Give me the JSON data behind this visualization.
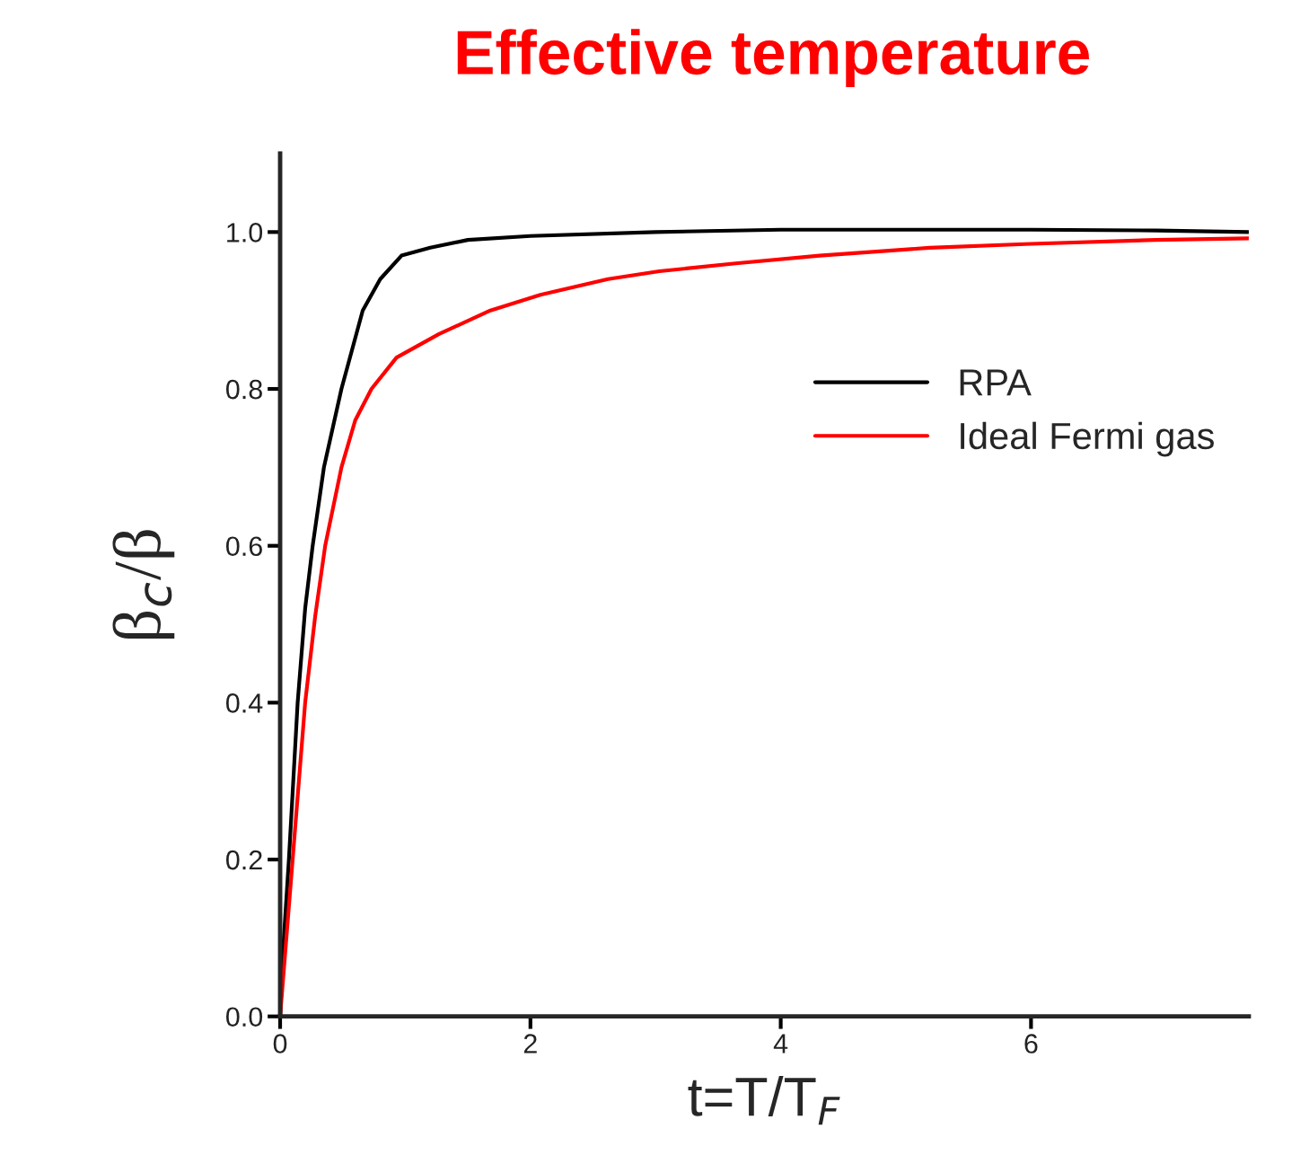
{
  "chart_data": {
    "type": "line",
    "title": "Effective temperature",
    "xlabel": "t=T/T$_{F}$",
    "ylabel": "β$_{c}$/β",
    "xlim": [
      0,
      7.74
    ],
    "ylim": [
      0,
      1.1
    ],
    "xticks": [
      0,
      2,
      4,
      6
    ],
    "yticks": [
      {
        "value": 0,
        "label": "0.0"
      },
      {
        "value": 0.2,
        "label": "0.2"
      },
      {
        "value": 0.4,
        "label": "0.4"
      },
      {
        "value": 0.6,
        "label": "0.6"
      },
      {
        "value": 0.8,
        "label": "0.8"
      },
      {
        "value": 1.0,
        "label": "1.0"
      }
    ],
    "grid": false,
    "legend": "right",
    "marker": "none",
    "line_style": "solid",
    "series": [
      {
        "name": "RPA",
        "color": "#000000",
        "x": [
          0,
          0.03,
          0.07,
          0.14,
          0.2,
          0.26,
          0.35,
          0.49,
          0.66,
          0.8,
          0.97,
          1.2,
          1.5,
          2,
          3,
          4,
          5,
          6,
          7,
          7.74
        ],
        "values": [
          0,
          0.1,
          0.2,
          0.4,
          0.52,
          0.6,
          0.7,
          0.8,
          0.9,
          0.94,
          0.97,
          0.98,
          0.99,
          0.995,
          1.0,
          1.003,
          1.003,
          1.003,
          1.002,
          1.0
        ]
      },
      {
        "name": "Ideal Fermi gas",
        "color": "#ff0000",
        "x": [
          0,
          0.05,
          0.1,
          0.2,
          0.28,
          0.36,
          0.49,
          0.6,
          0.73,
          0.93,
          1.27,
          1.68,
          2.08,
          2.62,
          3.03,
          3.64,
          4.31,
          5.19,
          6.0,
          7.0,
          7.74
        ],
        "values": [
          0,
          0.1,
          0.2,
          0.4,
          0.51,
          0.6,
          0.7,
          0.76,
          0.8,
          0.84,
          0.87,
          0.9,
          0.92,
          0.94,
          0.95,
          0.96,
          0.97,
          0.98,
          0.985,
          0.99,
          0.992
        ]
      }
    ]
  }
}
